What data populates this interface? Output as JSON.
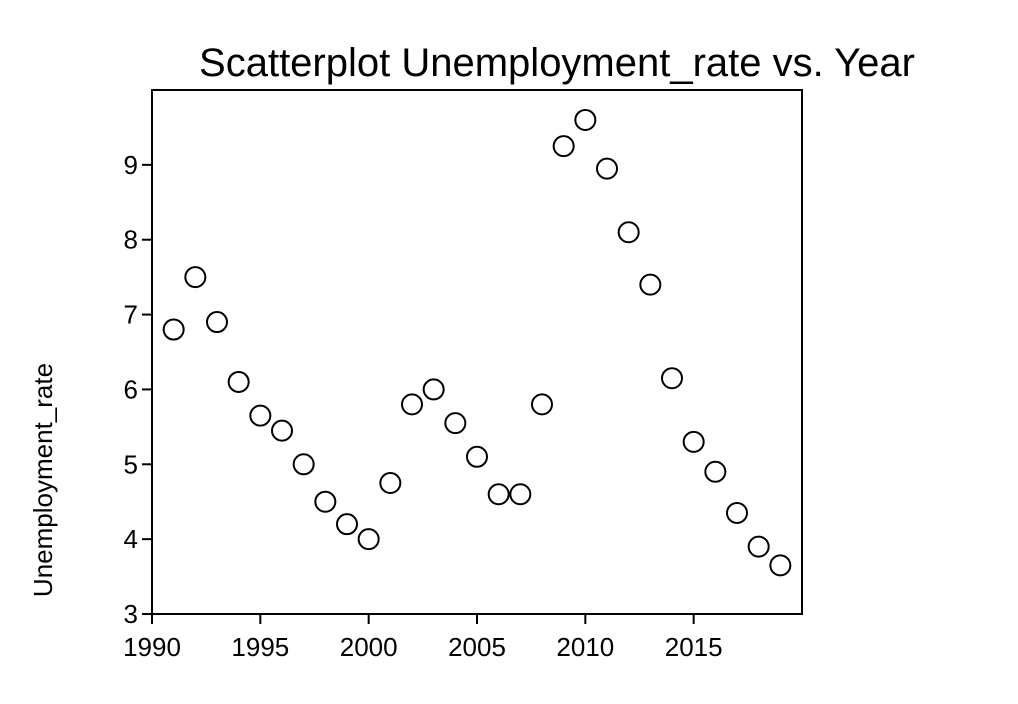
{
  "chart_data": {
    "type": "scatter",
    "title": "Scatterplot Unemployment_rate vs. Year",
    "xlabel": "",
    "ylabel": "Unemployment_rate",
    "xlim": [
      1990,
      2020
    ],
    "ylim": [
      3,
      10
    ],
    "xticks": [
      1990,
      1995,
      2000,
      2005,
      2010,
      2015
    ],
    "yticks": [
      3,
      4,
      5,
      6,
      7,
      8,
      9
    ],
    "grid": false,
    "x": [
      1991,
      1992,
      1993,
      1994,
      1995,
      1996,
      1997,
      1998,
      1999,
      2000,
      2001,
      2002,
      2003,
      2004,
      2005,
      2006,
      2007,
      2008,
      2009,
      2010,
      2011,
      2012,
      2013,
      2014,
      2015,
      2016,
      2017,
      2018,
      2019
    ],
    "y": [
      6.8,
      7.5,
      6.9,
      6.1,
      5.65,
      5.45,
      5.0,
      4.5,
      4.2,
      4.0,
      4.75,
      5.8,
      6.0,
      5.55,
      5.1,
      4.6,
      4.6,
      5.8,
      9.25,
      9.6,
      8.95,
      8.1,
      7.4,
      6.15,
      5.3,
      4.9,
      4.35,
      3.9,
      3.65
    ]
  }
}
